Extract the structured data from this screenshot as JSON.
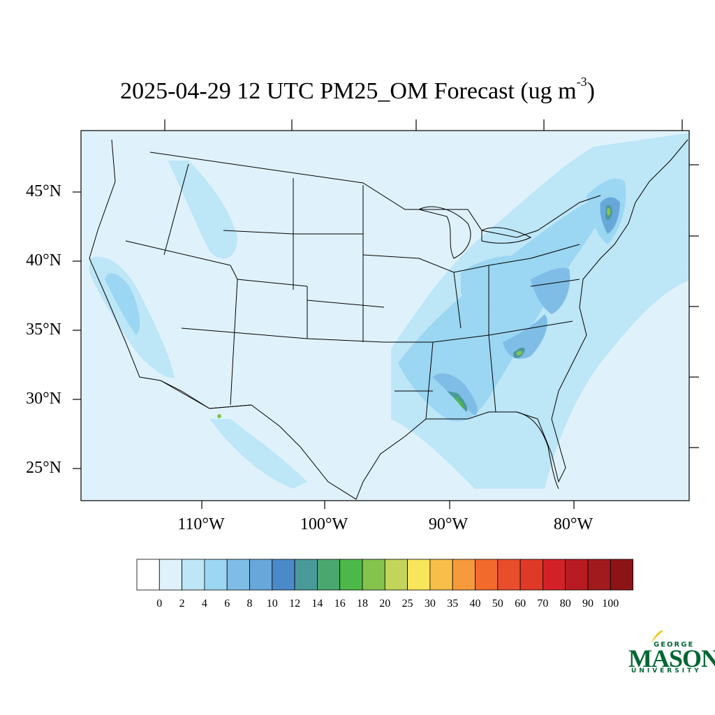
{
  "title": {
    "main": "2025-04-29 12 UTC PM25_OM Forecast (ug m",
    "exponent": "-3",
    "suffix": ")"
  },
  "map": {
    "lat_labels": [
      "45°N",
      "40°N",
      "35°N",
      "30°N",
      "25°N"
    ],
    "lon_labels": [
      "110°W",
      "100°W",
      "90°W",
      "80°W"
    ],
    "background_color": "#dff2fb"
  },
  "colorbar": {
    "labels": [
      "0",
      "2",
      "4",
      "6",
      "8",
      "10",
      "12",
      "14",
      "16",
      "18",
      "20",
      "25",
      "30",
      "35",
      "40",
      "50",
      "60",
      "70",
      "80",
      "90",
      "100"
    ],
    "colors": [
      "#ffffff",
      "#dff2fb",
      "#bde6f7",
      "#9bd6f2",
      "#7fbde6",
      "#68a7da",
      "#4a8ac9",
      "#4a9a9a",
      "#4aa86e",
      "#4cb848",
      "#84c44d",
      "#c3d45a",
      "#f7e55b",
      "#f7bf4a",
      "#f79a3c",
      "#f26a2c",
      "#e84e2b",
      "#df3a27",
      "#d42128",
      "#b81c22",
      "#a01a1e",
      "#8c1416"
    ]
  },
  "logo": {
    "line1": "GEORGE",
    "line2": "MASON",
    "line3": "UNIVERSITY",
    "color": "#006633"
  }
}
